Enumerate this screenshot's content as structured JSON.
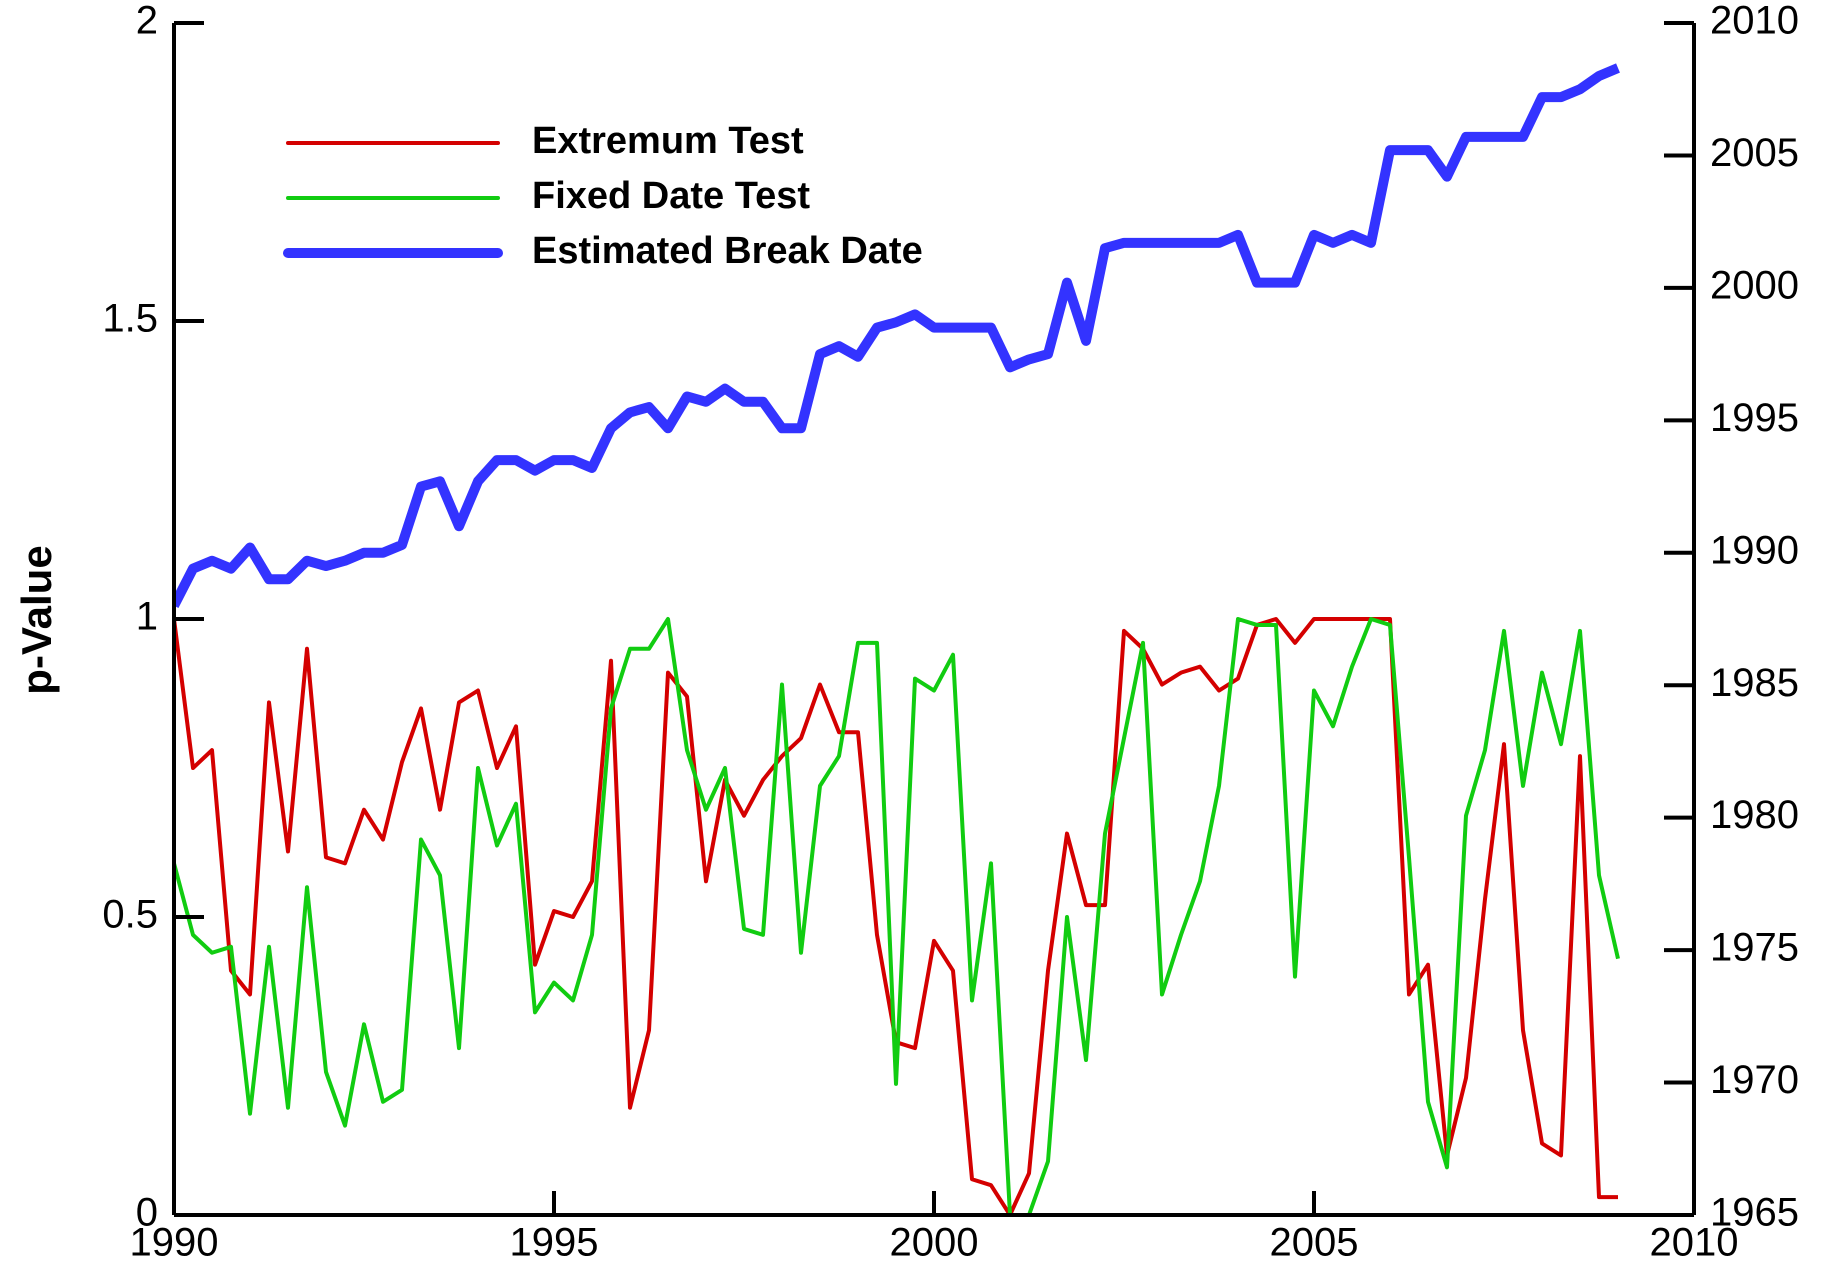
{
  "chart_data": {
    "type": "line",
    "ylabel": "p-Value",
    "x": [
      1990,
      1990.25,
      1990.5,
      1990.75,
      1991,
      1991.25,
      1991.5,
      1991.75,
      1992,
      1992.25,
      1992.5,
      1992.75,
      1993,
      1993.25,
      1993.5,
      1993.75,
      1994,
      1994.25,
      1994.5,
      1994.75,
      1995,
      1995.25,
      1995.5,
      1995.75,
      1996,
      1996.25,
      1996.5,
      1996.75,
      1997,
      1997.25,
      1997.5,
      1997.75,
      1998,
      1998.25,
      1998.5,
      1998.75,
      1999,
      1999.25,
      1999.5,
      1999.75,
      2000,
      2000.25,
      2000.5,
      2000.75,
      2001,
      2001.25,
      2001.5,
      2001.75,
      2002,
      2002.25,
      2002.5,
      2002.75,
      2003,
      2003.25,
      2003.5,
      2003.75,
      2004,
      2004.25,
      2004.5,
      2004.75,
      2005,
      2005.25,
      2005.5,
      2005.75,
      2006,
      2006.25,
      2006.5,
      2006.75,
      2007,
      2007.25,
      2007.5,
      2007.75,
      2008,
      2008.25,
      2008.5,
      2008.75,
      2009
    ],
    "series": [
      {
        "name": "Extremum Test",
        "color": "#d40000",
        "width": 4,
        "values": [
          1.0,
          0.75,
          0.78,
          0.41,
          0.37,
          0.86,
          0.61,
          0.95,
          0.6,
          0.59,
          0.68,
          0.63,
          0.76,
          0.85,
          0.68,
          0.86,
          0.88,
          0.75,
          0.82,
          0.42,
          0.51,
          0.5,
          0.56,
          0.93,
          0.18,
          0.31,
          0.91,
          0.87,
          0.56,
          0.73,
          0.67,
          0.73,
          0.77,
          0.8,
          0.89,
          0.81,
          0.81,
          0.47,
          0.29,
          0.28,
          0.46,
          0.41,
          0.06,
          0.05,
          0.0,
          0.07,
          0.41,
          0.64,
          0.52,
          0.52,
          0.98,
          0.95,
          0.89,
          0.91,
          0.92,
          0.88,
          0.9,
          0.99,
          1.0,
          0.96,
          1.0,
          1.0,
          1.0,
          1.0,
          1.0,
          0.37,
          0.42,
          0.1,
          0.23,
          0.53,
          0.79,
          0.31,
          0.12,
          0.1,
          0.77,
          0.03,
          0.03
        ]
      },
      {
        "name": "Fixed Date Test",
        "color": "#11cc11",
        "width": 4,
        "values": [
          0.59,
          0.47,
          0.44,
          0.45,
          0.17,
          0.45,
          0.18,
          0.55,
          0.24,
          0.15,
          0.32,
          0.19,
          0.21,
          0.63,
          0.57,
          0.28,
          0.75,
          0.62,
          0.69,
          0.34,
          0.39,
          0.36,
          0.47,
          0.85,
          0.95,
          0.95,
          1.0,
          0.78,
          0.68,
          0.75,
          0.48,
          0.47,
          0.89,
          0.44,
          0.72,
          0.77,
          0.96,
          0.96,
          0.22,
          0.9,
          0.88,
          0.94,
          0.36,
          0.59,
          0.0,
          0.0,
          0.09,
          0.5,
          0.26,
          0.64,
          0.8,
          0.96,
          0.37,
          0.47,
          0.56,
          0.72,
          1.0,
          0.99,
          0.99,
          0.4,
          0.88,
          0.82,
          0.92,
          1.0,
          0.99,
          0.6,
          0.19,
          0.08,
          0.67,
          0.78,
          0.98,
          0.72,
          0.91,
          0.79,
          0.98,
          0.57,
          0.43
        ]
      },
      {
        "name": "Estimated Break Date",
        "color": "#3333ff",
        "width": 10,
        "axis": "y2",
        "values": [
          1988.0,
          1989.4,
          1989.7,
          1989.4,
          1990.2,
          1989.0,
          1989.0,
          1989.7,
          1989.5,
          1989.7,
          1990.0,
          1990.0,
          1990.3,
          1992.5,
          1992.7,
          1991.0,
          1992.7,
          1993.5,
          1993.5,
          1993.1,
          1993.5,
          1993.5,
          1993.2,
          1994.7,
          1995.3,
          1995.5,
          1994.7,
          1995.9,
          1995.7,
          1996.2,
          1995.7,
          1995.7,
          1994.7,
          1994.7,
          1997.5,
          1997.8,
          1997.4,
          1998.5,
          1998.7,
          1999.0,
          1998.5,
          1998.5,
          1998.5,
          1998.5,
          1997.0,
          1997.3,
          1997.5,
          2000.2,
          1998.0,
          2001.5,
          2001.7,
          2001.7,
          2001.7,
          2001.7,
          2001.7,
          2001.7,
          2002.0,
          2000.2,
          2000.2,
          2000.2,
          2002.0,
          2001.7,
          2002.0,
          2001.7,
          2005.2,
          2005.2,
          2005.2,
          2004.2,
          2005.7,
          2005.7,
          2005.7,
          2005.7,
          2007.2,
          2007.2,
          2007.5,
          2008.0,
          2008.3
        ]
      }
    ],
    "xlim": [
      1990,
      2010
    ],
    "xticks": [
      1990,
      1995,
      2000,
      2005,
      2010
    ],
    "ylim": [
      0,
      2
    ],
    "yticks": [
      0,
      0.5,
      1,
      1.5,
      2
    ],
    "y2lim": [
      1965,
      2010
    ],
    "y2ticks": [
      1965,
      1970,
      1975,
      1980,
      1985,
      1990,
      1995,
      2000,
      2005,
      2010
    ],
    "grid": false,
    "legend": "upper left"
  }
}
